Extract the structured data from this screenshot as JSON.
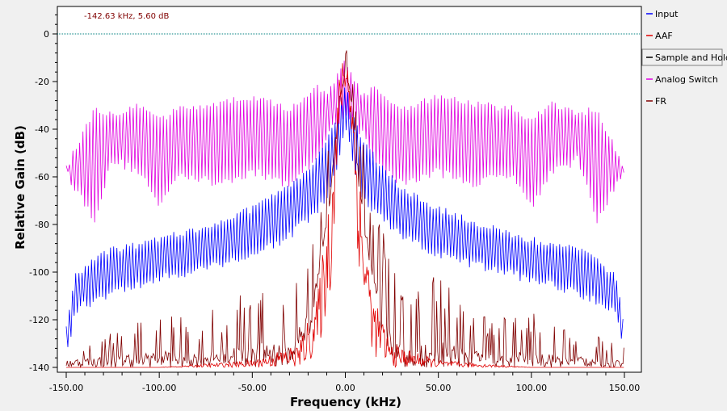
{
  "chart_data": {
    "type": "line",
    "title": "",
    "xlabel": "Frequency (kHz)",
    "ylabel": "Relative Gain (dB)",
    "xlim": [
      -150,
      150
    ],
    "ylim": [
      -140,
      10
    ],
    "x_ticks": [
      -150,
      -100,
      -50,
      0,
      50,
      100,
      150
    ],
    "x_tick_labels": [
      "-150.00",
      "-100.00",
      "-50.00",
      "0.00",
      "50.00",
      "100.00",
      "150.00"
    ],
    "y_ticks": [
      -140,
      -120,
      -100,
      -80,
      -60,
      -40,
      -20,
      0
    ],
    "y_tick_labels": [
      "-140",
      "-120",
      "-100",
      "-80",
      "-60",
      "-40",
      "-20",
      "0"
    ],
    "grid": false,
    "legend_position": "right",
    "readout": "-142.63 kHz, 5.60 dB",
    "reference_line": {
      "y": 0,
      "color": "#008080"
    },
    "series": [
      {
        "name": "Input",
        "color": "#0000ff",
        "envelope_x": [
          -150,
          -145,
          -130,
          -100,
          -75,
          -50,
          -30,
          -20,
          -10,
          -5,
          0,
          5,
          10,
          20,
          30,
          50,
          75,
          100,
          130,
          145,
          150
        ],
        "envelope_top": [
          -120,
          -100,
          -90,
          -85,
          -79,
          -72,
          -63,
          -55,
          -44,
          -35,
          -20,
          -35,
          -44,
          -55,
          -63,
          -72,
          -79,
          -85,
          -90,
          -100,
          -120
        ],
        "envelope_bottom": [
          -138,
          -118,
          -112,
          -105,
          -100,
          -95,
          -87,
          -80,
          -72,
          -60,
          -40,
          -60,
          -72,
          -80,
          -87,
          -95,
          -100,
          -105,
          -112,
          -118,
          -138
        ]
      },
      {
        "name": "AAF",
        "color": "#e00000",
        "envelope_x": [
          -150,
          -100,
          -50,
          -25,
          -15,
          -8,
          -3,
          0,
          3,
          8,
          15,
          25,
          50,
          100,
          150
        ],
        "envelope_top": [
          -140,
          -140,
          -137,
          -130,
          -110,
          -60,
          -15,
          -5,
          -15,
          -60,
          -110,
          -130,
          -137,
          -140,
          -140
        ],
        "envelope_bottom": [
          -140,
          -140,
          -140,
          -140,
          -135,
          -110,
          -40,
          -25,
          -40,
          -110,
          -135,
          -140,
          -140,
          -140,
          -140
        ]
      },
      {
        "name": "Sample and Hold",
        "color": "#000000",
        "values": []
      },
      {
        "name": "Analog Switch",
        "color": "#e000e0",
        "envelope_x": [
          -150,
          -135,
          -125,
          -110,
          -100,
          -90,
          -70,
          -50,
          -30,
          -15,
          -10,
          0,
          10,
          15,
          30,
          50,
          70,
          90,
          100,
          110,
          125,
          135,
          150
        ],
        "envelope_top": [
          -55,
          -30,
          -32,
          -28,
          -35,
          -30,
          -28,
          -25,
          -30,
          -20,
          -25,
          -10,
          -25,
          -20,
          -30,
          -25,
          -28,
          -30,
          -35,
          -28,
          -32,
          -30,
          -55
        ],
        "envelope_bottom": [
          -60,
          -80,
          -55,
          -60,
          -75,
          -60,
          -65,
          -60,
          -65,
          -55,
          -45,
          -35,
          -45,
          -55,
          -65,
          -60,
          -65,
          -60,
          -75,
          -60,
          -55,
          -80,
          -60
        ]
      },
      {
        "name": "FR",
        "color": "#800000",
        "envelope_x": [
          -150,
          -130,
          -110,
          -100,
          -80,
          -60,
          -50,
          -40,
          -30,
          -20,
          -15,
          -8,
          -3,
          0,
          3,
          8,
          15,
          20,
          30,
          40,
          50,
          60,
          80,
          100,
          110,
          130,
          150
        ],
        "envelope_top": [
          -130,
          -125,
          -120,
          -115,
          -120,
          -110,
          -100,
          -105,
          -110,
          -80,
          -70,
          -40,
          -10,
          -5,
          -10,
          -40,
          -70,
          -80,
          -110,
          -105,
          -100,
          -110,
          -120,
          -115,
          -120,
          -125,
          -130
        ],
        "envelope_bottom": [
          -140,
          -140,
          -140,
          -140,
          -140,
          -140,
          -140,
          -140,
          -140,
          -130,
          -110,
          -70,
          -30,
          -20,
          -30,
          -70,
          -110,
          -130,
          -140,
          -140,
          -140,
          -140,
          -140,
          -140,
          -140,
          -140,
          -140
        ]
      }
    ]
  }
}
